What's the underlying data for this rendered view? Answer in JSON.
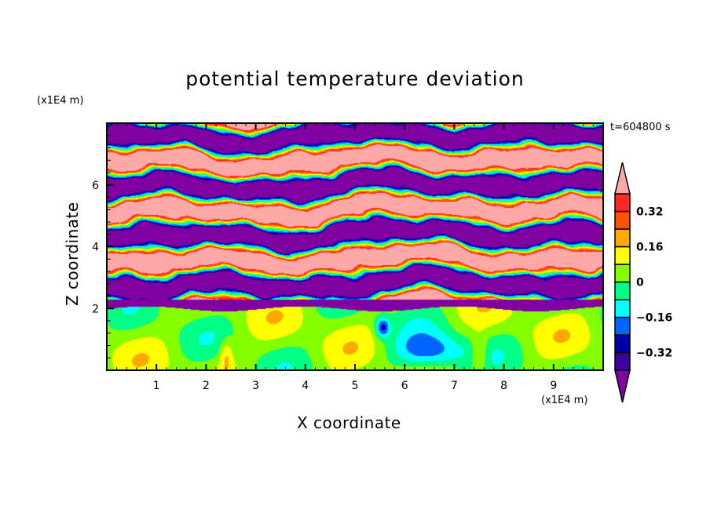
{
  "chart_data": {
    "type": "heatmap",
    "title": "potential temperature deviation",
    "xlabel": "X coordinate",
    "ylabel": "Z coordinate",
    "x_unit_label": "(x1E4 m)",
    "y_unit_label": "(x1E4 m)",
    "time_label": "t=604800 s",
    "xlim": [
      0,
      10
    ],
    "ylim": [
      0,
      8
    ],
    "x_ticks": [
      1,
      2,
      3,
      4,
      5,
      6,
      7,
      8,
      9
    ],
    "y_ticks": [
      2,
      4,
      6
    ],
    "colorbar": {
      "levels": [
        -0.4,
        -0.32,
        -0.24,
        -0.16,
        -0.08,
        0,
        0.08,
        0.16,
        0.24,
        0.32,
        0.4
      ],
      "colors": [
        "#8000a0",
        "#3c00a4",
        "#0000a8",
        "#0064ff",
        "#00ffff",
        "#00ff84",
        "#84ff00",
        "#ffff00",
        "#ffa800",
        "#ff5000",
        "#ff2828",
        "#ffa8a8"
      ],
      "labels": [
        {
          "value": -0.32,
          "text": "−0.32"
        },
        {
          "value": -0.16,
          "text": "−0.16"
        },
        {
          "value": 0,
          "text": "0"
        },
        {
          "value": 0.16,
          "text": "0.16"
        },
        {
          "value": 0.32,
          "text": "0.32"
        }
      ],
      "extend": "both"
    }
  }
}
